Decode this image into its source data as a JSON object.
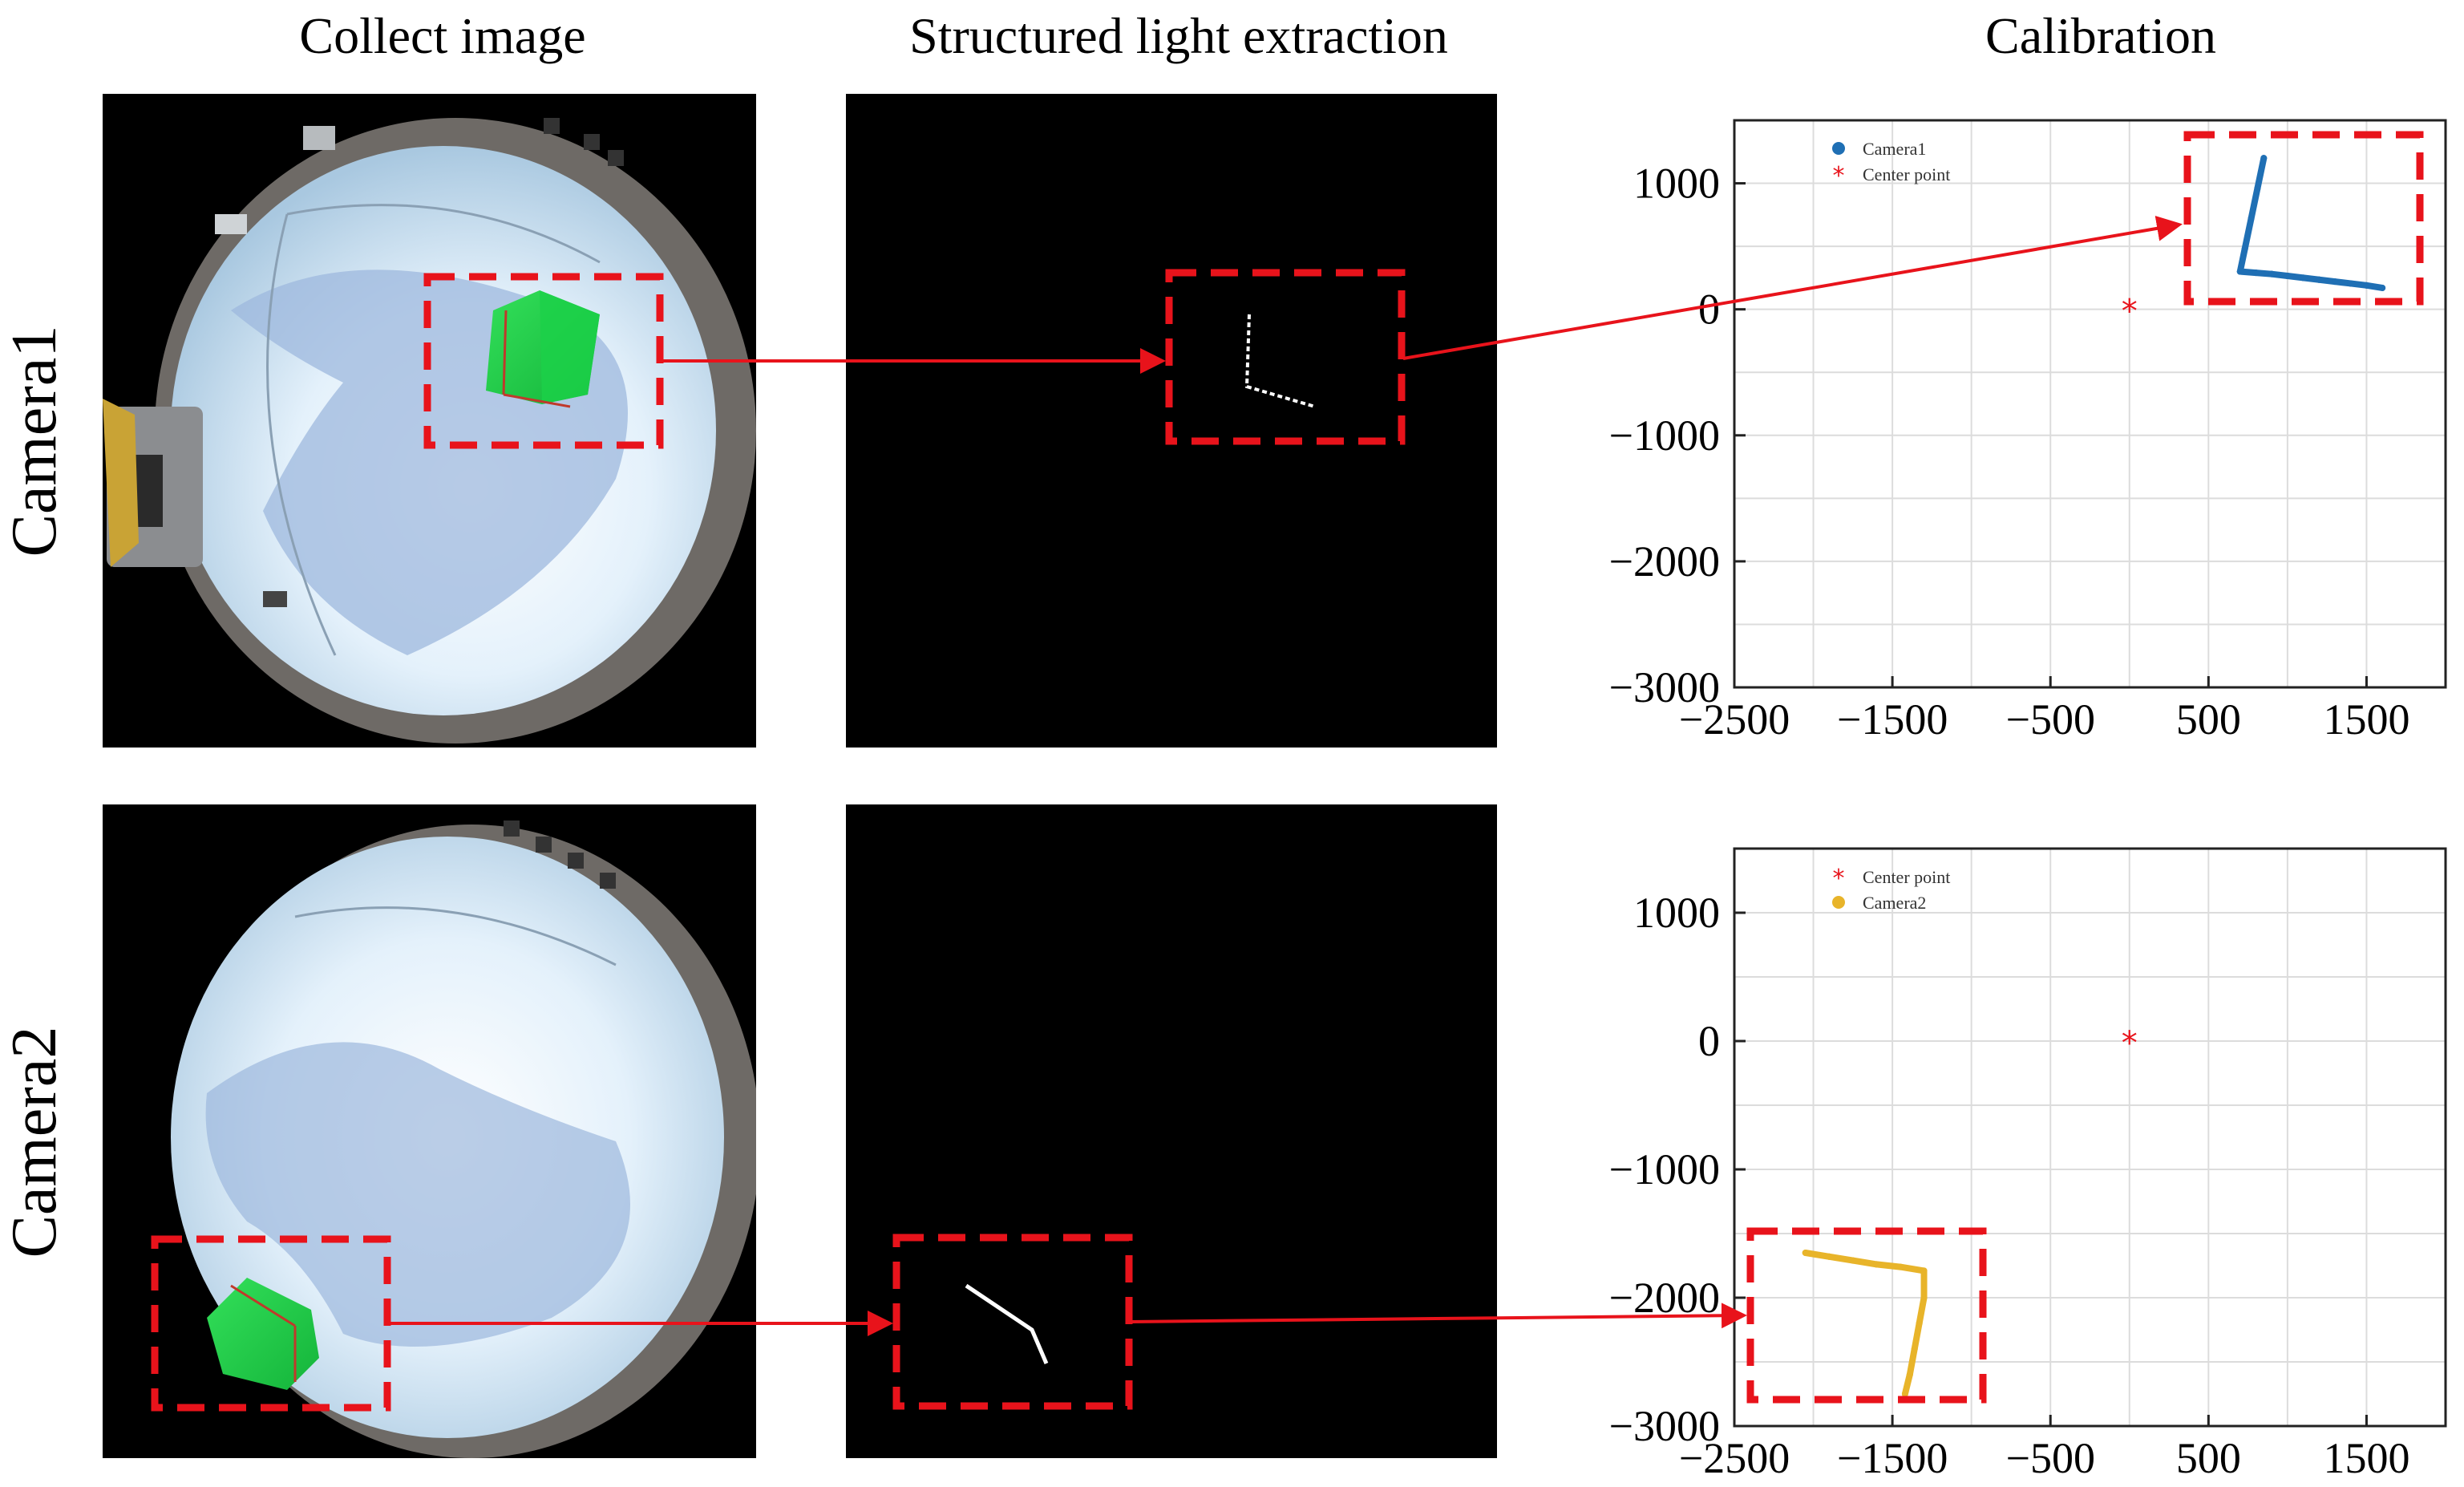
{
  "columns": {
    "collect": "Collect image",
    "extract": "Structured light extraction",
    "calib": "Calibration"
  },
  "rows": {
    "cam1": "Camera1",
    "cam2": "Camera2"
  },
  "colors": {
    "highlight_box": "#e8131b",
    "arrow": "#e8131b",
    "camera1_series": "#1f6fb4",
    "camera2_series": "#e8b42a",
    "center_point": "#e8131b",
    "grid": "#dcdcdc"
  },
  "chart_data": [
    {
      "type": "scatter",
      "name": "Camera1 calibration",
      "xlim": [
        -2500,
        2000
      ],
      "ylim": [
        -3000,
        1500
      ],
      "xticks": [
        -2500,
        -1500,
        -500,
        500,
        1500
      ],
      "yticks": [
        1000,
        0,
        -1000,
        -2000,
        -3000
      ],
      "xtick_labels": [
        "−2500",
        "−1500",
        "−500",
        "500",
        "1500"
      ],
      "ytick_labels": [
        "1000",
        "0",
        "−1000",
        "−2000",
        "−3000"
      ],
      "grid": true,
      "legend": "top-left",
      "legend_entries": [
        "Camera1",
        "Center point"
      ],
      "series": [
        {
          "name": "Camera1",
          "marker": "dot",
          "color": "#1f6fb4",
          "x": [
            850,
            810,
            770,
            730,
            700,
            800,
            900,
            1000,
            1100,
            1200,
            1300,
            1400,
            1500,
            1600
          ],
          "y": [
            1200,
            960,
            720,
            480,
            300,
            290,
            280,
            265,
            250,
            235,
            220,
            205,
            190,
            170
          ]
        },
        {
          "name": "Center point",
          "marker": "asterisk",
          "color": "#e8131b",
          "x": [
            0
          ],
          "y": [
            0
          ]
        }
      ]
    },
    {
      "type": "scatter",
      "name": "Camera2 calibration",
      "xlim": [
        -2500,
        2000
      ],
      "ylim": [
        -3000,
        1500
      ],
      "xticks": [
        -2500,
        -1500,
        -500,
        500,
        1500
      ],
      "yticks": [
        1000,
        0,
        -1000,
        -2000,
        -3000
      ],
      "xtick_labels": [
        "−2500",
        "−1500",
        "−500",
        "500",
        "1500"
      ],
      "ytick_labels": [
        "1000",
        "0",
        "−1000",
        "−2000",
        "−3000"
      ],
      "grid": true,
      "legend": "top-left",
      "legend_entries": [
        "Center point",
        "Camera2"
      ],
      "series": [
        {
          "name": "Center point",
          "marker": "asterisk",
          "color": "#e8131b",
          "x": [
            0
          ],
          "y": [
            0
          ]
        },
        {
          "name": "Camera2",
          "marker": "dot",
          "color": "#e8b42a",
          "x": [
            -2050,
            -1900,
            -1750,
            -1600,
            -1450,
            -1300,
            -1300,
            -1330,
            -1360,
            -1390,
            -1420
          ],
          "y": [
            -1650,
            -1680,
            -1710,
            -1740,
            -1760,
            -1790,
            -2000,
            -2200,
            -2400,
            -2600,
            -2750
          ]
        }
      ]
    }
  ]
}
